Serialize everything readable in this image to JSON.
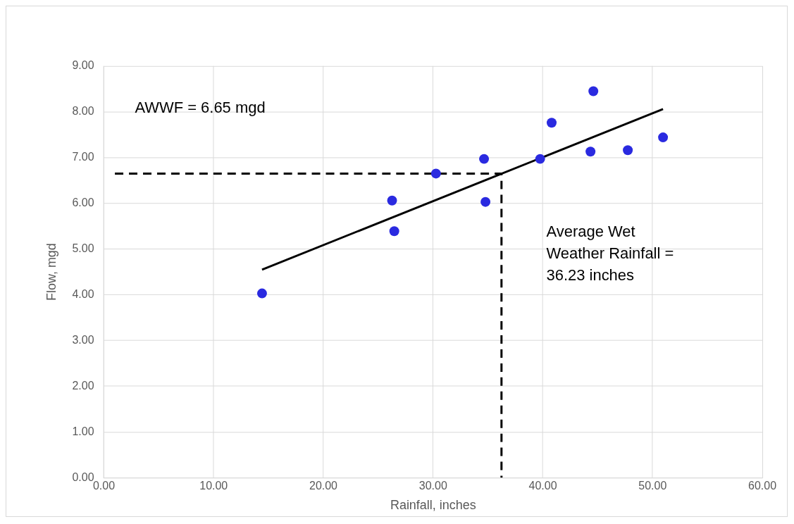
{
  "chart_data": {
    "type": "scatter",
    "xlabel": "Rainfall, inches",
    "ylabel": "Flow, mgd",
    "xlim": [
      0,
      60
    ],
    "ylim": [
      0,
      9
    ],
    "xticks": [
      {
        "value": 0,
        "label": "0.00"
      },
      {
        "value": 10,
        "label": "10.00"
      },
      {
        "value": 20,
        "label": "20.00"
      },
      {
        "value": 30,
        "label": "30.00"
      },
      {
        "value": 40,
        "label": "40.00"
      },
      {
        "value": 50,
        "label": "50.00"
      },
      {
        "value": 60,
        "label": "60.00"
      }
    ],
    "yticks": [
      {
        "value": 0,
        "label": "0.00"
      },
      {
        "value": 1,
        "label": "1.00"
      },
      {
        "value": 2,
        "label": "2.00"
      },
      {
        "value": 3,
        "label": "3.00"
      },
      {
        "value": 4,
        "label": "4.00"
      },
      {
        "value": 5,
        "label": "5.00"
      },
      {
        "value": 6,
        "label": "6.00"
      },
      {
        "value": 7,
        "label": "7.00"
      },
      {
        "value": 8,
        "label": "8.00"
      },
      {
        "value": 9,
        "label": "9.00"
      }
    ],
    "grid": true,
    "legend": false,
    "series": [
      {
        "marker": "circle",
        "color": "#2a2ae0",
        "x": [
          14.41,
          26.26,
          26.46,
          30.26,
          34.64,
          34.77,
          39.75,
          40.8,
          44.6,
          44.34,
          47.74,
          50.95
        ],
        "values": [
          4.03,
          6.06,
          5.39,
          6.65,
          6.97,
          6.03,
          6.97,
          7.76,
          8.45,
          7.13,
          7.16,
          7.44
        ]
      },
      {
        "type": "line",
        "marker": "none",
        "line_style": "solid",
        "color": "#000000",
        "x": [
          14.41,
          50.95
        ],
        "values": [
          4.55,
          8.06
        ]
      },
      {
        "type": "line",
        "marker": "none",
        "line_style": "dashed",
        "color": "#000000",
        "x": [
          1,
          36.23,
          36.23
        ],
        "values": [
          6.65,
          6.65,
          0
        ]
      }
    ],
    "annotations": [
      "AWWF = 6.65 mgd",
      "Average Wet\nWeather Rainfall =\n36.23 inches"
    ]
  }
}
